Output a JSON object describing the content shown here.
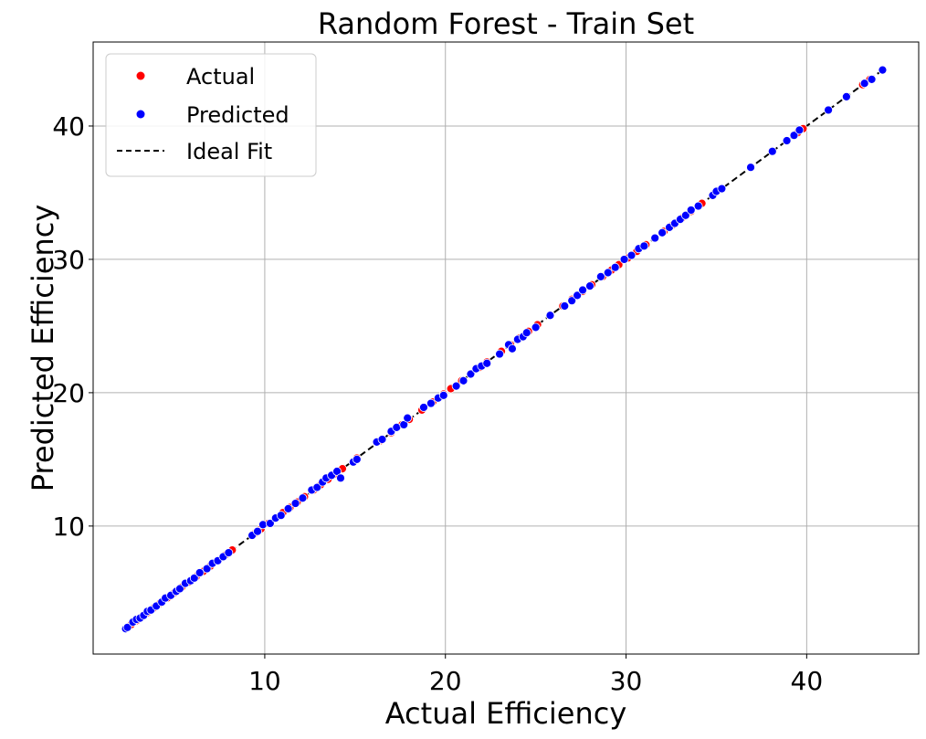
{
  "chart_data": {
    "type": "scatter",
    "title": "Random Forest - Train Set",
    "xlabel": "Actual Efficiency",
    "ylabel": "Predicted Efficiency",
    "xlim": [
      0.5,
      46.2
    ],
    "ylim": [
      0.4,
      46.3
    ],
    "xticks": [
      10,
      20,
      30,
      40
    ],
    "yticks": [
      10,
      20,
      30,
      40
    ],
    "grid": true,
    "legend_position": "top-left",
    "legend": [
      "Actual",
      "Predicted",
      "Ideal Fit"
    ],
    "colors": {
      "actual": "#ff0000",
      "predicted": "#0000ff",
      "ideal": "#000000",
      "grid": "#b0b0b0"
    },
    "ideal_fit": {
      "x": [
        2.3,
        44.2
      ],
      "y": [
        2.3,
        44.2
      ],
      "style": "dashed"
    },
    "series": [
      {
        "name": "Actual",
        "x": [
          2.3,
          2.6,
          2.9,
          3.2,
          3.5,
          3.8,
          4.2,
          4.6,
          5.0,
          5.4,
          5.8,
          6.2,
          6.6,
          7.0,
          7.4,
          7.8,
          8.2,
          9.4,
          9.8,
          10.2,
          10.6,
          11.0,
          11.4,
          11.8,
          12.2,
          12.7,
          13.1,
          13.5,
          13.9,
          14.3,
          15.1,
          16.4,
          17.0,
          17.6,
          18.0,
          18.7,
          19.3,
          19.9,
          20.3,
          20.9,
          21.4,
          21.9,
          22.3,
          23.1,
          23.6,
          24.1,
          24.6,
          25.1,
          25.8,
          26.5,
          27.0,
          27.6,
          28.1,
          28.7,
          29.2,
          29.6,
          30.1,
          30.6,
          31.1,
          31.6,
          32.1,
          32.6,
          33.1,
          33.6,
          34.2,
          34.8,
          35.3,
          36.9,
          38.1,
          38.9,
          39.5,
          39.8,
          41.2,
          42.2,
          43.1,
          43.5,
          44.2
        ],
        "y": [
          2.3,
          2.6,
          2.9,
          3.2,
          3.5,
          3.8,
          4.2,
          4.6,
          5.0,
          5.4,
          5.8,
          6.2,
          6.6,
          7.0,
          7.4,
          7.8,
          8.2,
          9.4,
          9.8,
          10.2,
          10.6,
          11.0,
          11.4,
          11.8,
          12.2,
          12.7,
          13.1,
          13.5,
          13.9,
          14.3,
          15.1,
          16.4,
          17.0,
          17.6,
          18.0,
          18.7,
          19.3,
          19.9,
          20.3,
          20.9,
          21.4,
          21.9,
          22.3,
          23.1,
          23.6,
          24.1,
          24.6,
          25.1,
          25.8,
          26.5,
          27.0,
          27.6,
          28.1,
          28.7,
          29.2,
          29.6,
          30.1,
          30.6,
          31.1,
          31.6,
          32.1,
          32.6,
          33.1,
          33.6,
          34.2,
          34.8,
          35.3,
          36.9,
          38.1,
          38.9,
          39.5,
          39.8,
          41.2,
          42.2,
          43.1,
          43.5,
          44.2
        ]
      },
      {
        "name": "Predicted",
        "x": [
          2.3,
          2.4,
          2.7,
          2.9,
          3.1,
          3.3,
          3.5,
          3.7,
          4.0,
          4.3,
          4.5,
          4.8,
          5.1,
          5.3,
          5.6,
          5.9,
          6.1,
          6.4,
          6.8,
          7.1,
          7.4,
          7.7,
          8.0,
          9.3,
          9.6,
          9.9,
          10.3,
          10.6,
          10.9,
          11.3,
          11.7,
          12.1,
          12.6,
          12.9,
          13.2,
          13.4,
          13.7,
          14.0,
          14.2,
          14.9,
          15.1,
          16.2,
          16.5,
          17.0,
          17.3,
          17.7,
          17.9,
          18.8,
          19.2,
          19.6,
          19.9,
          20.6,
          21.0,
          21.4,
          21.7,
          22.0,
          22.3,
          23.0,
          23.5,
          23.7,
          24.0,
          24.3,
          24.5,
          25.0,
          25.8,
          26.6,
          27.0,
          27.3,
          27.6,
          28.0,
          28.6,
          29.0,
          29.4,
          29.9,
          30.3,
          30.7,
          31.0,
          31.6,
          32.0,
          32.4,
          32.7,
          33.0,
          33.3,
          33.6,
          34.0,
          34.8,
          35.0,
          35.3,
          36.9,
          38.1,
          38.9,
          39.3,
          39.6,
          41.2,
          42.2,
          43.2,
          43.6,
          44.2
        ],
        "y": [
          2.3,
          2.4,
          2.8,
          3.0,
          3.1,
          3.3,
          3.6,
          3.7,
          4.0,
          4.3,
          4.6,
          4.8,
          5.1,
          5.3,
          5.7,
          5.9,
          6.1,
          6.5,
          6.8,
          7.2,
          7.4,
          7.7,
          8.0,
          9.3,
          9.6,
          10.1,
          10.2,
          10.6,
          10.8,
          11.3,
          11.7,
          12.1,
          12.7,
          12.9,
          13.3,
          13.6,
          13.8,
          14.1,
          13.6,
          14.8,
          15.0,
          16.3,
          16.5,
          17.1,
          17.4,
          17.6,
          18.1,
          18.9,
          19.2,
          19.6,
          19.8,
          20.5,
          20.9,
          21.4,
          21.8,
          22.0,
          22.2,
          22.9,
          23.6,
          23.3,
          24.0,
          24.2,
          24.5,
          24.9,
          25.8,
          26.5,
          26.9,
          27.3,
          27.7,
          28.0,
          28.7,
          29.0,
          29.4,
          30.0,
          30.3,
          30.8,
          31.0,
          31.6,
          32.0,
          32.4,
          32.7,
          33.0,
          33.3,
          33.7,
          34.0,
          34.8,
          35.1,
          35.3,
          36.9,
          38.1,
          38.9,
          39.3,
          39.7,
          41.2,
          42.2,
          43.2,
          43.5,
          44.2
        ]
      }
    ]
  }
}
